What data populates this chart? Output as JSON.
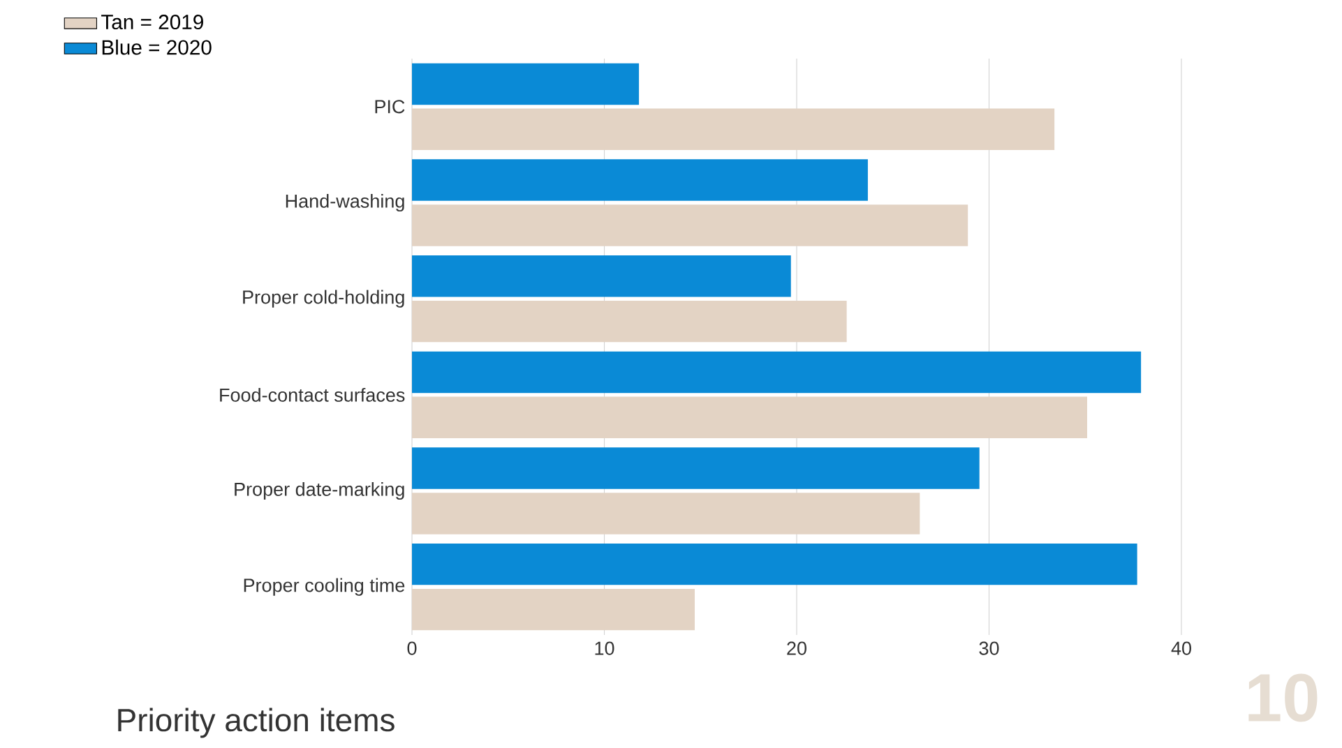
{
  "chart_data": {
    "type": "bar",
    "orientation": "horizontal",
    "title": "Priority action items",
    "annotations": [
      "10"
    ],
    "categories": [
      "PIC",
      "Hand-washing",
      "Proper cold-holding",
      "Food-contact surfaces",
      "Proper date-marking",
      "Proper cooling time"
    ],
    "series": [
      {
        "name": "Tan = 2019",
        "color": "#e3d3c4",
        "values": [
          33.4,
          28.9,
          22.6,
          35.1,
          26.4,
          14.7
        ]
      },
      {
        "name": "Blue = 2020",
        "color": "#0a8ad6",
        "values": [
          11.8,
          23.7,
          19.7,
          37.9,
          29.5,
          37.7
        ]
      }
    ],
    "xlim": [
      0,
      40
    ],
    "xticks": [
      0,
      10,
      20,
      30,
      40
    ],
    "grid": "x",
    "legend": "top left"
  }
}
